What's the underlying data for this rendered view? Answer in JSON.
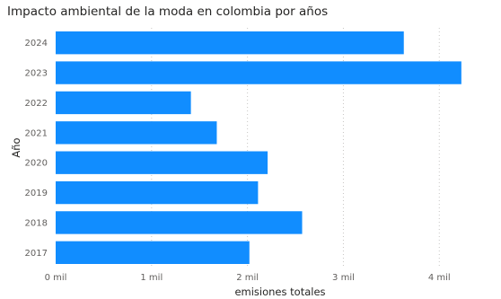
{
  "colors": {
    "bar": "#118DFF",
    "grid": "#c8c6c4",
    "text": "#605e5c"
  },
  "chart_data": {
    "type": "bar",
    "orientation": "horizontal",
    "title": "Impacto ambiental de la moda en colombia por años",
    "xlabel": "emisiones totales",
    "ylabel": "Año",
    "categories": [
      "2024",
      "2023",
      "2022",
      "2021",
      "2020",
      "2019",
      "2018",
      "2017"
    ],
    "values": [
      3630,
      4230,
      1410,
      1680,
      2210,
      2110,
      2570,
      2020
    ],
    "xlim": [
      0,
      4400
    ],
    "xticks": [
      {
        "value": 0,
        "label": "0 mil"
      },
      {
        "value": 1000,
        "label": "1 mil"
      },
      {
        "value": 2000,
        "label": "2 mil"
      },
      {
        "value": 3000,
        "label": "3 mil"
      },
      {
        "value": 4000,
        "label": "4 mil"
      }
    ],
    "grid": true
  }
}
